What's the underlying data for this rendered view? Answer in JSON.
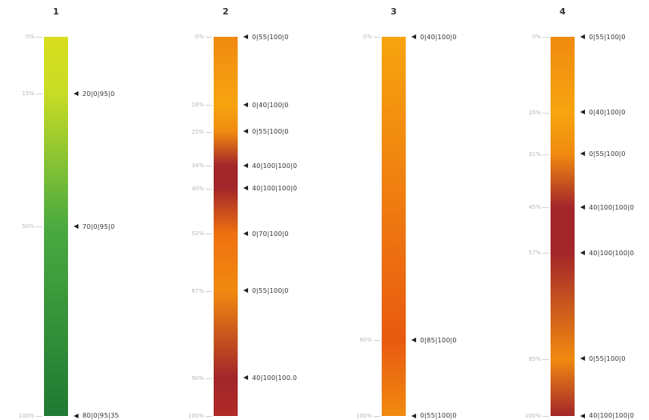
{
  "columns": [
    {
      "title": "1",
      "stops": [
        {
          "pct": "0%",
          "code": null,
          "color": "#d9de1e",
          "pos": 0
        },
        {
          "pct": "15%",
          "code": "20|0|95|0",
          "color": "#c8dc25",
          "pos": 0.15
        },
        {
          "pct": "50%",
          "code": "70|0|95|0",
          "color": "#4aaa40",
          "pos": 0.5
        },
        {
          "pct": "100%",
          "code": "80|0|95|35",
          "color": "#1f7a32",
          "pos": 1.0
        }
      ]
    },
    {
      "title": "2",
      "stops": [
        {
          "pct": "0%",
          "code": "0|55|100|0",
          "color": "#f08a10",
          "pos": 0
        },
        {
          "pct": "18%",
          "code": "0|40|100|0",
          "color": "#f7a40f",
          "pos": 0.18
        },
        {
          "pct": "25%",
          "code": "0|55|100|0",
          "color": "#f08a10",
          "pos": 0.25
        },
        {
          "pct": "34%",
          "code": "40|100|100|0",
          "color": "#a2262a",
          "pos": 0.34
        },
        {
          "pct": "40%",
          "code": "40|100|100|0",
          "color": "#a2262a",
          "pos": 0.4
        },
        {
          "pct": "52%",
          "code": "0|70|100|0",
          "color": "#ef7110",
          "pos": 0.52
        },
        {
          "pct": "67%",
          "code": "0|55|100|0",
          "color": "#f08a10",
          "pos": 0.67
        },
        {
          "pct": "90%",
          "code": "40|100|100.0",
          "color": "#a2262a",
          "pos": 0.9
        },
        {
          "pct": "100%",
          "code": null,
          "color": "#b02a28",
          "pos": 1.0
        }
      ]
    },
    {
      "title": "3",
      "stops": [
        {
          "pct": "0%",
          "code": "0|40|100|0",
          "color": "#f7a40f",
          "pos": 0
        },
        {
          "pct": "80%",
          "code": "0|85|100|0",
          "color": "#e85a10",
          "pos": 0.8
        },
        {
          "pct": "100%",
          "code": "0|55|100|0",
          "color": "#f08a10",
          "pos": 1.0
        }
      ]
    },
    {
      "title": "4",
      "stops": [
        {
          "pct": "0%",
          "code": "0|55|100|0",
          "color": "#f08a10",
          "pos": 0
        },
        {
          "pct": "20%",
          "code": "0|40|100|0",
          "color": "#f7a40f",
          "pos": 0.2
        },
        {
          "pct": "31%",
          "code": "0|55|100|0",
          "color": "#f08a10",
          "pos": 0.31
        },
        {
          "pct": "45%",
          "code": "40|100|100|0",
          "color": "#a2262a",
          "pos": 0.45
        },
        {
          "pct": "57%",
          "code": "40|100|100|0",
          "color": "#a2262a",
          "pos": 0.57
        },
        {
          "pct": "85%",
          "code": "0|55|100|0",
          "color": "#f08a10",
          "pos": 0.85
        },
        {
          "pct": "100%",
          "code": "40|100|100|0",
          "color": "#a2262a",
          "pos": 1.0
        }
      ]
    }
  ]
}
